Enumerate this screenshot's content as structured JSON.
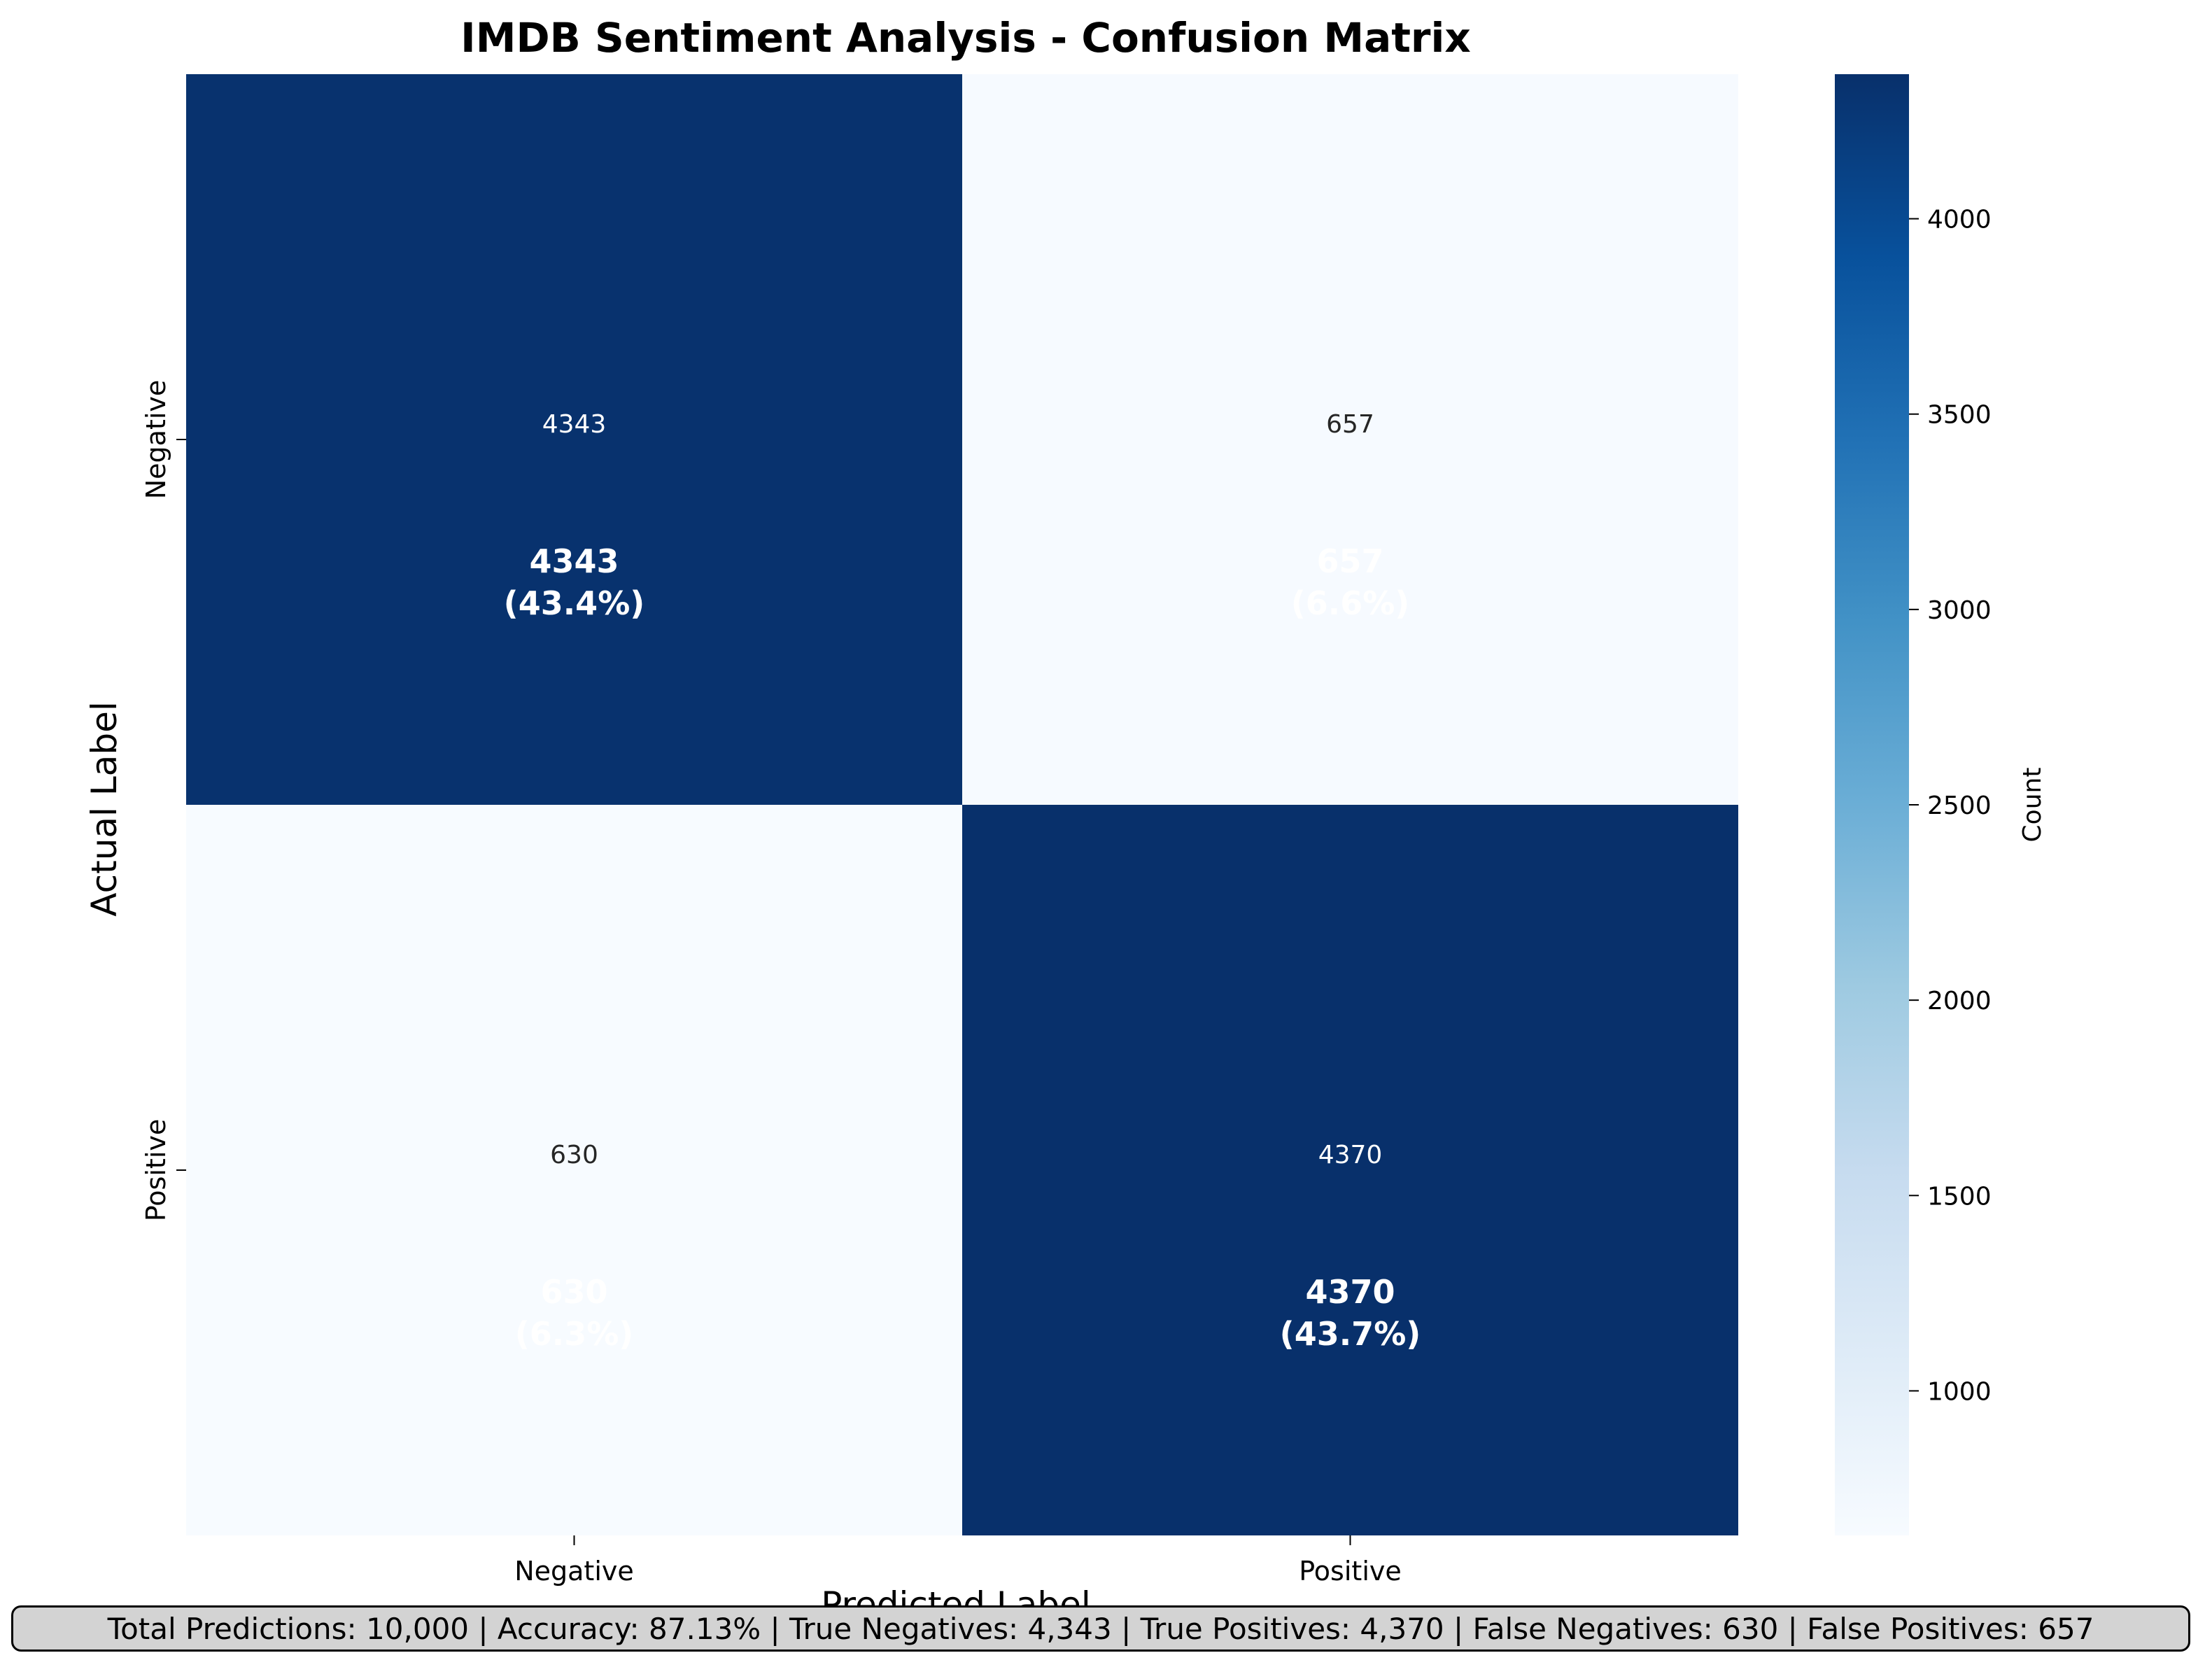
{
  "chart_data": {
    "type": "heatmap",
    "title": "IMDB Sentiment Analysis - Confusion Matrix",
    "xlabel": "Predicted Label",
    "ylabel": "Actual Label",
    "x_categories": [
      "Negative",
      "Positive"
    ],
    "y_categories": [
      "Negative",
      "Positive"
    ],
    "matrix": [
      [
        4343,
        657
      ],
      [
        630,
        4370
      ]
    ],
    "annotations": [
      [
        "4343\n(43.4%)",
        "657\n(6.6%)"
      ],
      [
        "630\n(6.3%)",
        "4370\n(43.7%)"
      ]
    ],
    "colormap": "Blues",
    "colorbar": {
      "label": "Count",
      "vmin": 630,
      "vmax": 4370,
      "ticks": [
        1000,
        1500,
        2000,
        2500,
        3000,
        3500,
        4000
      ]
    }
  },
  "summary": "Total Predictions: 10,000 | Accuracy: 87.13% | True Negatives: 4,343 | True Positives: 4,370 | False Negatives: 630 | False Positives: 657"
}
